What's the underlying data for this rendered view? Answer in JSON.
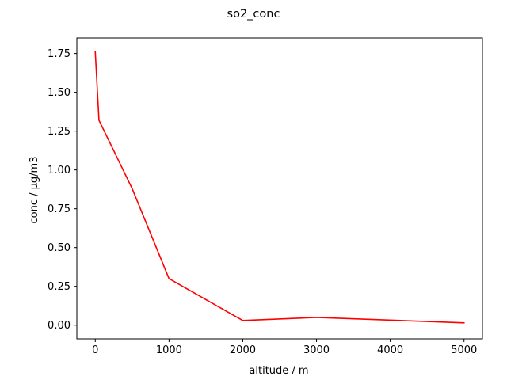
{
  "chart_data": {
    "type": "line",
    "title": "so2_conc",
    "xlabel": "altitude / m",
    "ylabel": "conc / µg/m3",
    "xlim": [
      -250,
      5250
    ],
    "ylim": [
      -0.088,
      1.85
    ],
    "xticks": [
      0,
      1000,
      2000,
      3000,
      4000,
      5000
    ],
    "yticks": [
      0.0,
      0.25,
      0.5,
      0.75,
      1.0,
      1.25,
      1.5,
      1.75
    ],
    "ytick_labels": [
      "0.00",
      "0.25",
      "0.50",
      "0.75",
      "1.00",
      "1.25",
      "1.50",
      "1.75"
    ],
    "grid": false,
    "series": [
      {
        "color": "#ff0000",
        "x": [
          0,
          50,
          500,
          1000,
          2000,
          3000,
          5000
        ],
        "y": [
          1.76,
          1.32,
          0.88,
          0.3,
          0.03,
          0.05,
          0.015
        ]
      }
    ]
  }
}
